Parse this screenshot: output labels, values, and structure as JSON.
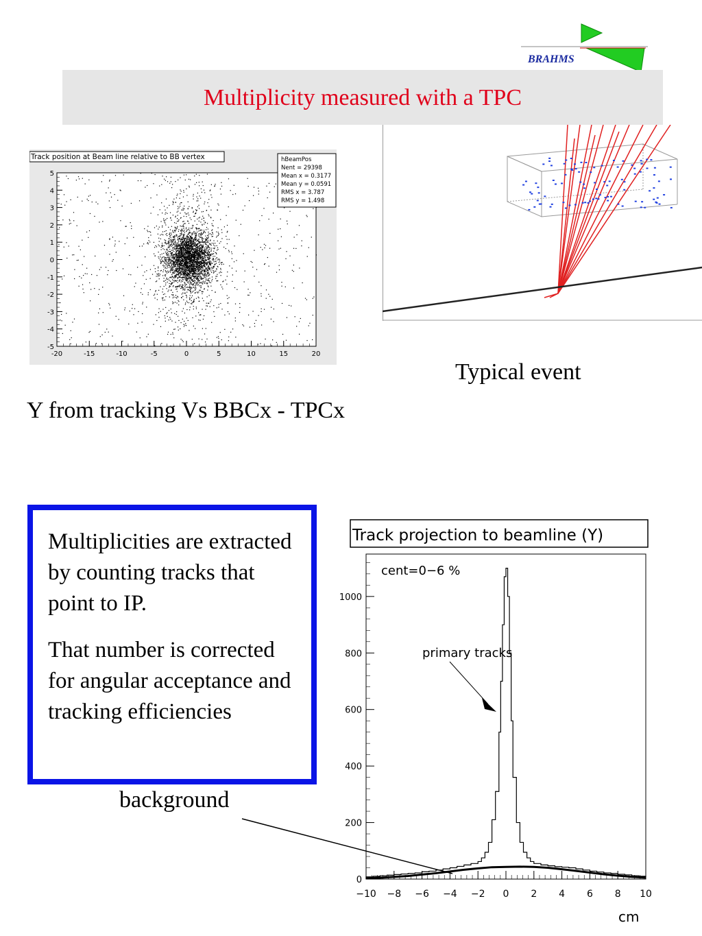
{
  "header": {
    "title": "Multiplicity measured with a TPC",
    "logo_text": "BRAHMS",
    "logo_color": "#22cc22",
    "accent_red": "#e0001a"
  },
  "scatter_plot": {
    "title": "Track position at Beam line relative to BB vertex",
    "stats": {
      "name": "hBeamPos",
      "nent": "Nent = 29398",
      "mean_x": "Mean x = 0.3177",
      "mean_y": "Mean y = 0.0591",
      "rms_x": "RMS x  =  3.787",
      "rms_y": "RMS y  =  1.498"
    }
  },
  "event_display": {
    "caption": "Typical event"
  },
  "captions": {
    "scatter": "Y from tracking Vs BBCx - TPCx",
    "background": "background"
  },
  "info_box": {
    "paragraph1": "Multiplicities are extracted by counting tracks that point to IP.",
    "paragraph2": "That number is corrected for angular acceptance and tracking efficiencies",
    "border_color": "#0a14e6"
  },
  "chart_data": [
    {
      "type": "scatter",
      "title": "Track position at Beam line relative to BB vertex",
      "xlim": [
        -20,
        20
      ],
      "ylim": [
        -5,
        5
      ],
      "x_ticks": [
        -20,
        -15,
        -10,
        -5,
        0,
        5,
        10,
        15,
        20
      ],
      "y_ticks": [
        -5,
        -4,
        -3,
        -2,
        -1,
        0,
        1,
        2,
        3,
        4,
        5
      ],
      "entries": 29398,
      "mean_x": 0.3177,
      "mean_y": 0.0591,
      "rms_x": 3.787,
      "rms_y": 1.498,
      "grid": false
    },
    {
      "type": "line",
      "title": "Track projection to beamline (Y)",
      "annotation_cent": "cent=0−6 %",
      "annotation_primary": "primary tracks",
      "xlabel": "cm",
      "xlim": [
        -10,
        10
      ],
      "ylim": [
        0,
        1150
      ],
      "x_ticks": [
        -10,
        -8,
        -6,
        -4,
        -2,
        0,
        2,
        4,
        6,
        8,
        10
      ],
      "y_ticks": [
        0,
        200,
        400,
        600,
        800,
        1000
      ],
      "series": [
        {
          "style": "histogram",
          "x": [
            -10.0,
            -9.5,
            -9.0,
            -8.5,
            -8.0,
            -7.5,
            -7.0,
            -6.5,
            -6.0,
            -5.5,
            -5.0,
            -4.5,
            -4.0,
            -3.5,
            -3.0,
            -2.5,
            -2.0,
            -1.75,
            -1.5,
            -1.25,
            -1.0,
            -0.75,
            -0.5,
            -0.375,
            -0.25,
            -0.125,
            0.0,
            0.125,
            0.25,
            0.375,
            0.5,
            0.75,
            1.0,
            1.25,
            1.5,
            1.75,
            2.0,
            2.5,
            3.0,
            3.5,
            4.0,
            4.5,
            5.0,
            5.5,
            6.0,
            6.5,
            7.0,
            7.5,
            8.0,
            8.5,
            9.0,
            9.5,
            10.0
          ],
          "values": [
            8,
            10,
            12,
            14,
            16,
            18,
            20,
            22,
            26,
            28,
            32,
            36,
            40,
            45,
            50,
            55,
            62,
            75,
            95,
            130,
            210,
            310,
            520,
            700,
            900,
            1070,
            1100,
            1000,
            800,
            560,
            360,
            200,
            130,
            95,
            75,
            62,
            55,
            50,
            47,
            44,
            42,
            40,
            36,
            32,
            28,
            25,
            22,
            20,
            17,
            15,
            12,
            10,
            8
          ]
        },
        {
          "style": "curve",
          "x": [
            -10,
            -9,
            -8,
            -7,
            -6,
            -5,
            -4,
            -3,
            -2,
            -1,
            0,
            1,
            2,
            3,
            4,
            5,
            6,
            7,
            8,
            9,
            10
          ],
          "values": [
            3,
            5,
            8,
            11,
            16,
            21,
            27,
            33,
            38,
            42,
            43,
            44,
            43,
            40,
            35,
            29,
            23,
            17,
            12,
            8,
            5
          ]
        }
      ]
    }
  ]
}
